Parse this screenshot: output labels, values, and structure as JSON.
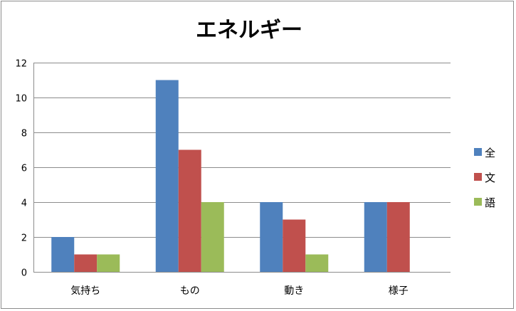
{
  "chart_data": {
    "type": "bar",
    "title": "エネルギー",
    "xlabel": "",
    "ylabel": "",
    "categories": [
      "気持ち",
      "もの",
      "動き",
      "様子"
    ],
    "series": [
      {
        "name": "全",
        "color": "#4f81bd",
        "values": [
          2,
          11,
          4,
          4
        ]
      },
      {
        "name": "文",
        "color": "#c0504d",
        "values": [
          1,
          7,
          3,
          4
        ]
      },
      {
        "name": "語",
        "color": "#9bbb59",
        "values": [
          1,
          4,
          1,
          0
        ]
      }
    ],
    "ylim": [
      0,
      12
    ],
    "yticks": [
      0,
      2,
      4,
      6,
      8,
      10,
      12
    ],
    "grid": true,
    "legend": "right"
  }
}
